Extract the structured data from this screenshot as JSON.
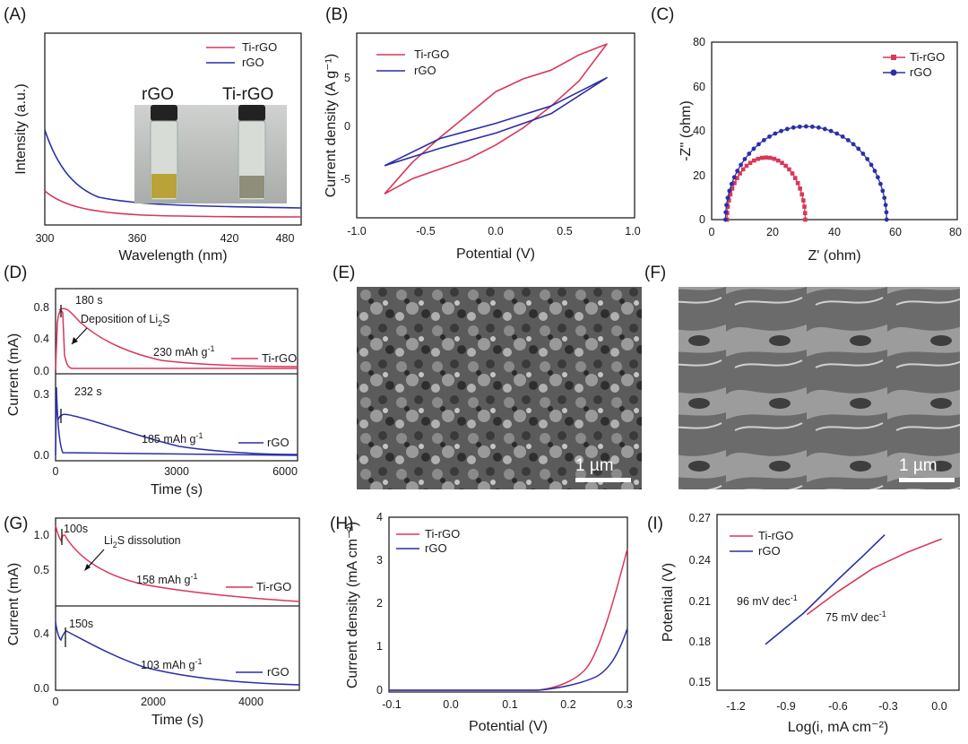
{
  "colors": {
    "ti_rgo": "#d8375a",
    "rgo": "#2b2fa6",
    "axis": "#222222"
  },
  "panels": {
    "A": {
      "label": "(A)",
      "xlabel": "Wavelength (nm)",
      "ylabel": "Intensity (a.u.)",
      "xticks": [
        "300",
        "360",
        "420",
        "480"
      ],
      "legend": [
        "Ti-rGO",
        "rGO"
      ],
      "photo_labels": [
        "rGO",
        "Ti-rGO"
      ]
    },
    "B": {
      "label": "(B)",
      "xlabel": "Potential (V)",
      "ylabel": "Current density (A g⁻¹)",
      "xticks": [
        "-1.0",
        "-0.5",
        "0.0",
        "0.5",
        "1.0"
      ],
      "yticks": [
        "5",
        "0",
        "-5"
      ],
      "legend": [
        "Ti-rGO",
        "rGO"
      ]
    },
    "C": {
      "label": "(C)",
      "xlabel": "Z' (ohm)",
      "ylabel": "-Z'' (ohm)",
      "xticks": [
        "0",
        "20",
        "40",
        "60",
        "80"
      ],
      "yticks": [
        "80",
        "60",
        "40",
        "20",
        "0"
      ],
      "legend": [
        "Ti-rGO",
        "rGO"
      ]
    },
    "D": {
      "label": "(D)",
      "xlabel": "Time (s)",
      "ylabel": "Current (mA)",
      "xticks": [
        "0",
        "3000",
        "6000"
      ],
      "yticks_top": [
        "0.8",
        "0.4",
        "0.0"
      ],
      "yticks_bot": [
        "0.3",
        "0.0"
      ],
      "ann_time_top": "180 s",
      "ann_dep": "Deposition of Li",
      "ann_dep_sub": "2",
      "ann_dep_tail": "S",
      "cap_top": "230 mAh g",
      "cap_bot": "185 mAh g",
      "cap_exp": "-1",
      "ann_time_bot": "232 s",
      "legend_top": "Ti-rGO",
      "legend_bot": "rGO"
    },
    "E": {
      "label": "(E)",
      "scale": "1 µm"
    },
    "F": {
      "label": "(F)",
      "scale": "1 µm"
    },
    "G": {
      "label": "(G)",
      "xlabel": "Time (s)",
      "ylabel": "Current (mA)",
      "xticks": [
        "0",
        "2000",
        "4000"
      ],
      "yticks_top": [
        "1.0",
        "0.5"
      ],
      "yticks_bot": [
        "0.4",
        "0.0"
      ],
      "ann_time_top": "100s",
      "ann_dis": "Li",
      "ann_dis_sub": "2",
      "ann_dis_tail": "S dissolution",
      "cap_top": "158 mAh g",
      "cap_bot": "103 mAh g",
      "cap_exp": "-1",
      "ann_time_bot": "150s",
      "legend_top": "Ti-rGO",
      "legend_bot": "rGO"
    },
    "H": {
      "label": "(H)",
      "xlabel": "Potential (V)",
      "ylabel": "Current density (mA cm⁻²)",
      "xticks": [
        "-0.1",
        "0.0",
        "0.1",
        "0.2",
        "0.3"
      ],
      "yticks": [
        "4",
        "3",
        "2",
        "1",
        "0"
      ],
      "legend": [
        "Ti-rGO",
        "rGO"
      ]
    },
    "I": {
      "label": "(I)",
      "xlabel": "Log(i, mA cm⁻²)",
      "ylabel": "Potential (V)",
      "xticks": [
        "-1.2",
        "-0.9",
        "-0.6",
        "-0.3",
        "0.0"
      ],
      "yticks": [
        "0.27",
        "0.24",
        "0.21",
        "0.18",
        "0.15"
      ],
      "legend": [
        "Ti-rGO",
        "rGO"
      ],
      "slope_rgo": "96 mV dec",
      "slope_ti": "75 mV dec",
      "slope_exp": "-1"
    }
  },
  "chart_data": [
    {
      "panel": "B",
      "type": "line",
      "title": "",
      "xlabel": "Potential (V)",
      "ylabel": "Current density (A g-1)",
      "xlim": [
        -1.0,
        1.0
      ],
      "ylim": [
        -9,
        8
      ],
      "series": [
        {
          "name": "Ti-rGO",
          "x": [
            -0.8,
            -0.6,
            -0.4,
            -0.2,
            0.0,
            0.2,
            0.4,
            0.6,
            0.8,
            0.6,
            0.4,
            0.2,
            0.0,
            -0.2,
            -0.4,
            -0.6,
            -0.8
          ],
          "y": [
            -6.8,
            -5.4,
            -4.5,
            -3.6,
            -2.3,
            -0.7,
            1.3,
            3.6,
            7.0,
            6.0,
            4.6,
            3.8,
            2.6,
            0.5,
            -1.6,
            -3.9,
            -6.8
          ]
        },
        {
          "name": "rGO",
          "x": [
            -0.8,
            -0.4,
            0.0,
            0.4,
            0.8,
            0.4,
            0.0,
            -0.4,
            -0.8
          ],
          "y": [
            -4.2,
            -2.6,
            -1.2,
            0.6,
            3.9,
            1.3,
            -0.3,
            -1.7,
            -4.2
          ]
        }
      ]
    },
    {
      "panel": "C",
      "type": "scatter",
      "title": "",
      "xlabel": "Z' (ohm)",
      "ylabel": "-Z'' (ohm)",
      "xlim": [
        0,
        80
      ],
      "ylim": [
        0,
        80
      ],
      "series": [
        {
          "name": "Ti-rGO",
          "semicircle_start": 5,
          "semicircle_end": 30.5,
          "peak": 28
        },
        {
          "name": "rGO",
          "semicircle_start": 4.5,
          "semicircle_end": 57,
          "peak": 42
        }
      ]
    },
    {
      "panel": "I",
      "type": "line",
      "title": "",
      "xlabel": "Log(i, mA cm-2)",
      "ylabel": "Potential (V)",
      "xlim": [
        -1.3,
        0.1
      ],
      "ylim": [
        0.14,
        0.27
      ],
      "series": [
        {
          "name": "Ti-rGO",
          "x": [
            -0.78,
            -0.6,
            -0.4,
            -0.2,
            0.0
          ],
          "y": [
            0.196,
            0.213,
            0.23,
            0.242,
            0.252
          ]
        },
        {
          "name": "rGO",
          "x": [
            -1.02,
            -0.8,
            -0.6,
            -0.45,
            -0.33
          ],
          "y": [
            0.174,
            0.197,
            0.222,
            0.24,
            0.255
          ]
        }
      ]
    }
  ]
}
